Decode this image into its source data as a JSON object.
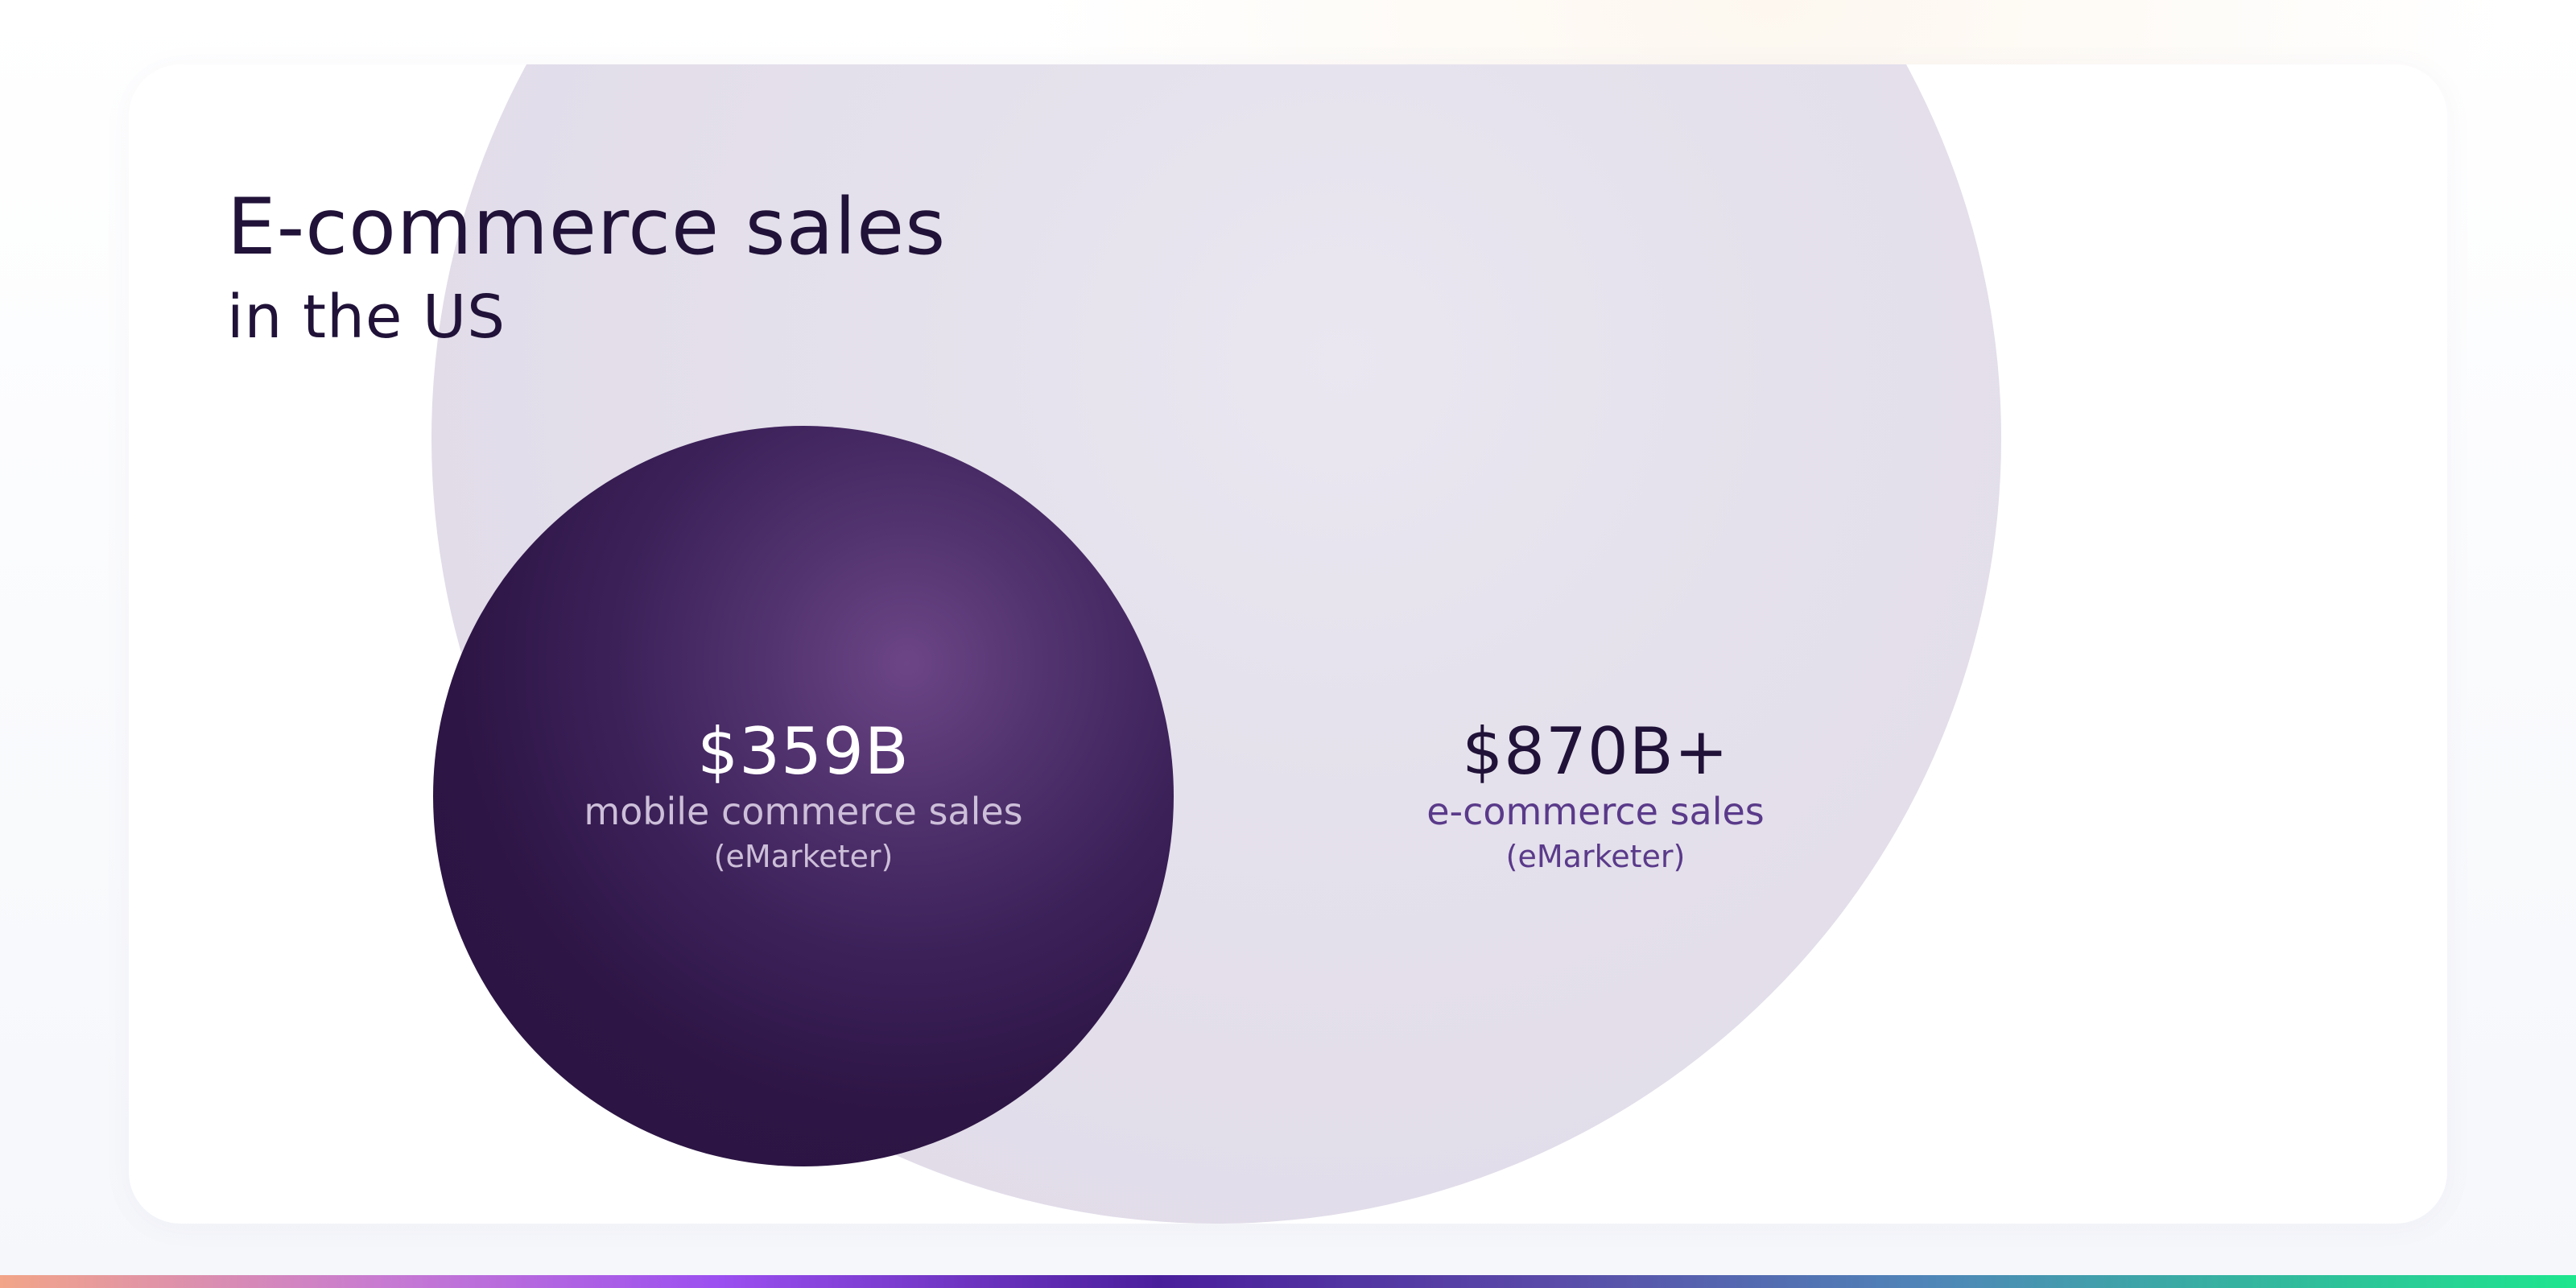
{
  "header": {
    "title": "E-commerce sales",
    "subtitle": "in the US"
  },
  "circles": {
    "mobile": {
      "value": "$359B",
      "label": "mobile commerce sales",
      "source": "(eMarketer)"
    },
    "ecommerce": {
      "value": "$870B+",
      "label": "e-commerce sales",
      "source": "(eMarketer)"
    }
  },
  "colors": {
    "title": "#201238",
    "mobile_circle": "#2b1442",
    "ecommerce_circle": "#e5e1ec",
    "ecommerce_label": "#5a3a8a"
  }
}
